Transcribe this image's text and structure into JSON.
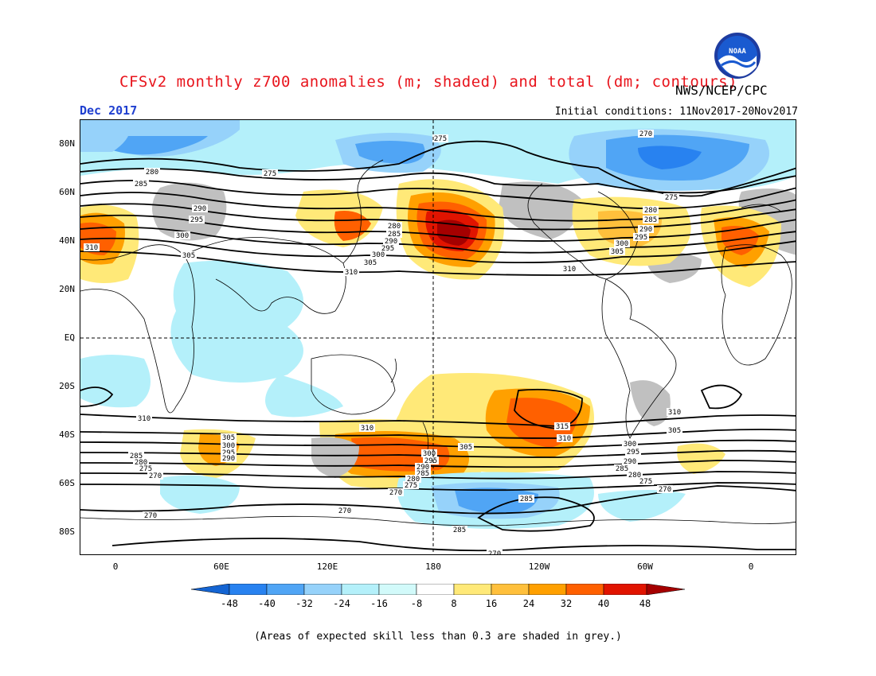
{
  "header": {
    "title": "CFSv2 monthly z700 anomalies (m; shaded) and total (dm; contours)",
    "agency": "NWS/NCEP/CPC",
    "month": "Dec 2017",
    "initial_conditions": "Initial conditions: 11Nov2017-20Nov2017",
    "logo_text": "NOAA"
  },
  "axes": {
    "lat_labels": [
      "80N",
      "60N",
      "40N",
      "20N",
      "EQ",
      "20S",
      "40S",
      "60S",
      "80S"
    ],
    "lon_labels": [
      "0",
      "60E",
      "120E",
      "180",
      "120W",
      "60W",
      "0"
    ]
  },
  "colorbar": {
    "labels": [
      "-48",
      "-40",
      "-32",
      "-24",
      "-16",
      "-8",
      "8",
      "16",
      "24",
      "32",
      "40",
      "48"
    ],
    "colors": [
      "#1464d2",
      "#2882f0",
      "#50a5f5",
      "#96d2fa",
      "#b4f0fa",
      "#ffffff",
      "#ffe978",
      "#ffc03c",
      "#ffa000",
      "#ff6000",
      "#e11400",
      "#a50000"
    ]
  },
  "footnote": "(Areas of expected skill less than 0.3 are shaded in grey.)",
  "contour_labels": [
    "270",
    "275",
    "280",
    "285",
    "290",
    "295",
    "300",
    "305",
    "310",
    "315"
  ],
  "colors": {
    "title": "#e8141c",
    "month": "#2040d0",
    "grey_skill": "#c0c0c0"
  }
}
